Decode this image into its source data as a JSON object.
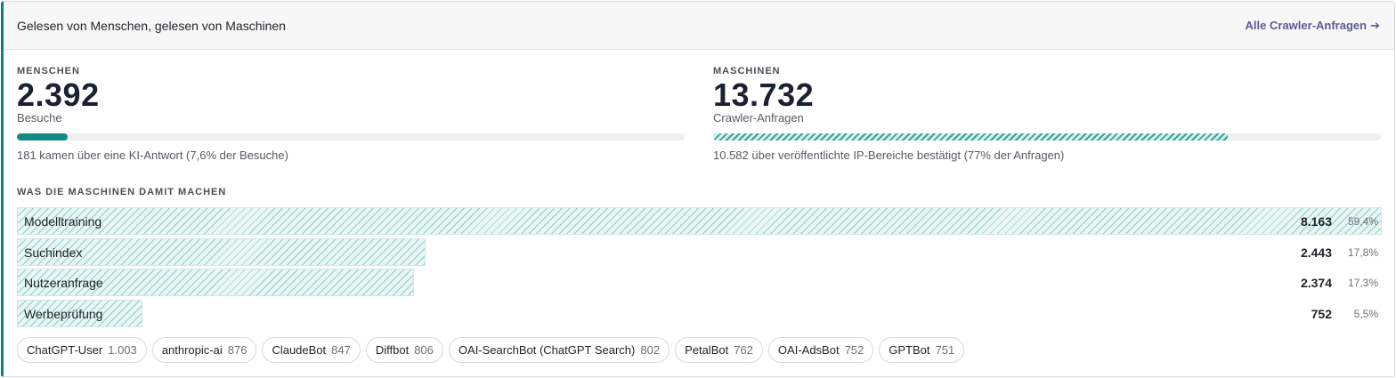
{
  "header": {
    "title": "Gelesen von Menschen, gelesen von Maschinen",
    "link_label": "Alle Crawler-Anfragen",
    "link_arrow": "➔"
  },
  "humans": {
    "kicker": "MENSCHEN",
    "value": "2.392",
    "unit": "Besuche",
    "bar_fraction": 0.076,
    "note": "181 kamen über eine KI-Antwort (7,6% der Besuche)"
  },
  "machines": {
    "kicker": "MASCHINEN",
    "value": "13.732",
    "unit": "Crawler-Anfragen",
    "bar_fraction": 0.77,
    "note": "10.582 über veröffentlichte IP-Bereiche bestätigt (77% der Anfragen)"
  },
  "purposes": {
    "kicker": "WAS DIE MASCHINEN DAMIT MACHEN",
    "items": [
      {
        "label": "Modelltraining",
        "count": "8.163",
        "pct": "59,4%",
        "fraction": 1.0
      },
      {
        "label": "Suchindex",
        "count": "2.443",
        "pct": "17,8%",
        "fraction": 0.2993
      },
      {
        "label": "Nutzeranfrage",
        "count": "2.374",
        "pct": "17,3%",
        "fraction": 0.2908
      },
      {
        "label": "Werbeprüfung",
        "count": "752",
        "pct": "5,5%",
        "fraction": 0.0921
      }
    ]
  },
  "crawlers": [
    {
      "name": "ChatGPT-User",
      "count": "1.003"
    },
    {
      "name": "anthropic-ai",
      "count": "876"
    },
    {
      "name": "ClaudeBot",
      "count": "847"
    },
    {
      "name": "Diffbot",
      "count": "806"
    },
    {
      "name": "OAI-SearchBot (ChatGPT Search)",
      "count": "802"
    },
    {
      "name": "PetalBot",
      "count": "762"
    },
    {
      "name": "OAI-AdsBot",
      "count": "752"
    },
    {
      "name": "GPTBot",
      "count": "751"
    }
  ],
  "colors": {
    "accent": "#127f7a",
    "link": "#5b5a92"
  }
}
